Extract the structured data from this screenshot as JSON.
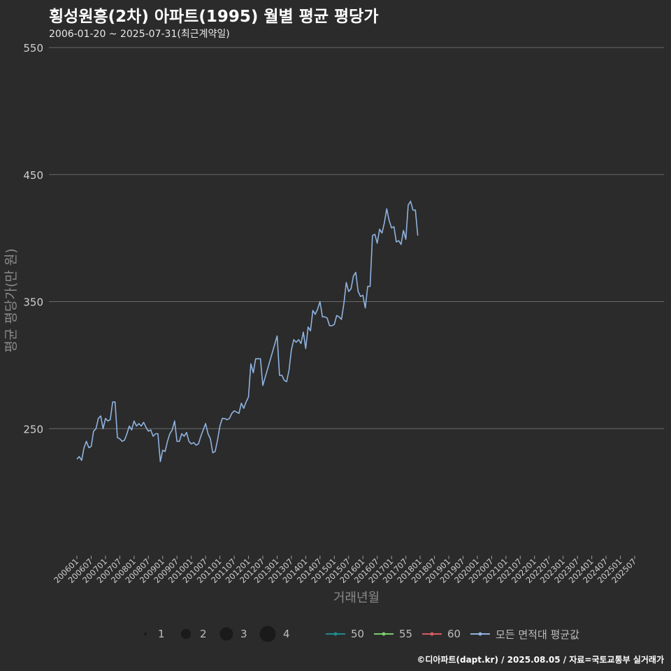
{
  "title": "횡성원흥(2차) 아파트(1995) 월별 평균 평당가",
  "subtitle": "2006-01-20 ~ 2025-07-31(최근계약일)",
  "caption": "©디아파트(dapt.kr) / 2025.08.05 / 자료=국토교통부 실거래가",
  "colors": {
    "background": "#2b2b2b",
    "grid": "#6a6a6a",
    "area_50": "#1f8c8c",
    "area_55": "#7ccd6e",
    "area_60": "#d95b63",
    "avg_line": "#8fb3e0"
  },
  "chart_data": {
    "type": "line",
    "title": "횡성원흥(2차) 아파트(1995) 월별 평균 평당가",
    "xlabel": "거래년월",
    "ylabel": "평균 평당가(만 원)",
    "ylim": [
      150,
      550
    ],
    "yticks": [
      250,
      350,
      450,
      550
    ],
    "xticks": [
      "200601",
      "200607",
      "200701",
      "200707",
      "200801",
      "200807",
      "200901",
      "200907",
      "201001",
      "201007",
      "201101",
      "201107",
      "201201",
      "201207",
      "201301",
      "201307",
      "201401",
      "201407",
      "201501",
      "201507",
      "201601",
      "201607",
      "201701",
      "201707",
      "201801",
      "201807",
      "201901",
      "201907",
      "202001",
      "202007",
      "202101",
      "202107",
      "202201",
      "202207",
      "202301",
      "202307",
      "202401",
      "202407",
      "202501",
      "202507"
    ],
    "grid": true,
    "legend_position": "bottom",
    "size_legend": {
      "values": [
        "1",
        "2",
        "3",
        "4"
      ]
    },
    "color_legend": [
      {
        "name": "50",
        "color": "#1f8c8c"
      },
      {
        "name": "55",
        "color": "#7ccd6e"
      },
      {
        "name": "60",
        "color": "#d95b63"
      },
      {
        "name": "모든 면적대 평균값",
        "color": "#8fb3e0"
      }
    ],
    "line_series": {
      "name": "모든 면적대 평균값",
      "points": [
        [
          "200601",
          226
        ],
        [
          "200602",
          228
        ],
        [
          "200603",
          225
        ],
        [
          "200604",
          235
        ],
        [
          "200605",
          240
        ],
        [
          "200606",
          235
        ],
        [
          "200607",
          236
        ],
        [
          "200608",
          248
        ],
        [
          "200609",
          250
        ],
        [
          "200610",
          258
        ],
        [
          "200611",
          260
        ],
        [
          "200612",
          250
        ],
        [
          "200701",
          258
        ],
        [
          "200702",
          256
        ],
        [
          "200703",
          257
        ],
        [
          "200704",
          271
        ],
        [
          "200705",
          271
        ],
        [
          "200706",
          243
        ],
        [
          "200707",
          242
        ],
        [
          "200708",
          240
        ],
        [
          "200709",
          241
        ],
        [
          "200710",
          246
        ],
        [
          "200711",
          252
        ],
        [
          "200712",
          249
        ],
        [
          "200801",
          256
        ],
        [
          "200802",
          252
        ],
        [
          "200803",
          254
        ],
        [
          "200804",
          252
        ],
        [
          "200805",
          255
        ],
        [
          "200806",
          251
        ],
        [
          "200807",
          248
        ],
        [
          "200808",
          249
        ],
        [
          "200809",
          244
        ],
        [
          "200810",
          246
        ],
        [
          "200811",
          246
        ],
        [
          "200812",
          224
        ],
        [
          "200901",
          233
        ],
        [
          "200902",
          232
        ],
        [
          "200903",
          240
        ],
        [
          "200904",
          246
        ],
        [
          "200905",
          249
        ],
        [
          "200906",
          256
        ],
        [
          "200907",
          240
        ],
        [
          "200908",
          240
        ],
        [
          "200909",
          246
        ],
        [
          "200910",
          244
        ],
        [
          "200911",
          247
        ],
        [
          "200912",
          240
        ],
        [
          "201001",
          238
        ],
        [
          "201002",
          239
        ],
        [
          "201003",
          237
        ],
        [
          "201004",
          238
        ],
        [
          "201005",
          244
        ],
        [
          "201006",
          249
        ],
        [
          "201007",
          254
        ],
        [
          "201008",
          246
        ],
        [
          "201009",
          242
        ],
        [
          "201010",
          231
        ],
        [
          "201011",
          232
        ],
        [
          "201012",
          241
        ],
        [
          "201101",
          252
        ],
        [
          "201102",
          258
        ],
        [
          "201103",
          258
        ],
        [
          "201104",
          257
        ],
        [
          "201105",
          258
        ],
        [
          "201106",
          262
        ],
        [
          "201107",
          264
        ],
        [
          "201108",
          263
        ],
        [
          "201109",
          262
        ],
        [
          "201110",
          270
        ],
        [
          "201111",
          266
        ],
        [
          "201112",
          271
        ],
        [
          "201201",
          275
        ],
        [
          "201202",
          301
        ],
        [
          "201203",
          294
        ],
        [
          "201204",
          305
        ],
        [
          "201205",
          305
        ],
        [
          "201206",
          305
        ],
        [
          "201207",
          284
        ],
        [
          "201301",
          323
        ],
        [
          "201302",
          292
        ],
        [
          "201303",
          292
        ],
        [
          "201304",
          288
        ],
        [
          "201305",
          287
        ],
        [
          "201306",
          296
        ],
        [
          "201307",
          312
        ],
        [
          "201308",
          320
        ],
        [
          "201309",
          318
        ],
        [
          "201310",
          320
        ],
        [
          "201311",
          317
        ],
        [
          "201312",
          326
        ],
        [
          "201401",
          313
        ],
        [
          "201402",
          330
        ],
        [
          "201403",
          327
        ],
        [
          "201404",
          343
        ],
        [
          "201405",
          340
        ],
        [
          "201406",
          344
        ],
        [
          "201407",
          350
        ],
        [
          "201408",
          338
        ],
        [
          "201409",
          338
        ],
        [
          "201410",
          337
        ],
        [
          "201411",
          331
        ],
        [
          "201412",
          331
        ],
        [
          "201501",
          332
        ],
        [
          "201502",
          339
        ],
        [
          "201503",
          338
        ],
        [
          "201504",
          336
        ],
        [
          "201505",
          348
        ],
        [
          "201506",
          365
        ],
        [
          "201507",
          358
        ],
        [
          "201508",
          360
        ],
        [
          "201509",
          370
        ],
        [
          "201510",
          373
        ],
        [
          "201511",
          358
        ],
        [
          "201512",
          354
        ],
        [
          "201601",
          355
        ],
        [
          "201602",
          345
        ],
        [
          "201603",
          362
        ],
        [
          "201604",
          362
        ],
        [
          "201605",
          402
        ],
        [
          "201606",
          403
        ],
        [
          "201607",
          396
        ],
        [
          "201608",
          407
        ],
        [
          "201609",
          404
        ],
        [
          "201610",
          412
        ],
        [
          "201611",
          423
        ],
        [
          "201612",
          414
        ],
        [
          "201701",
          408
        ],
        [
          "201702",
          409
        ],
        [
          "201703",
          397
        ],
        [
          "201704",
          398
        ],
        [
          "201705",
          395
        ],
        [
          "201706",
          406
        ],
        [
          "201707",
          399
        ],
        [
          "201708",
          426
        ],
        [
          "201709",
          429
        ],
        [
          "201710",
          422
        ],
        [
          "201711",
          422
        ],
        [
          "201712",
          402
        ],
        [
          "201801",
          ",null"
        ]
      ]
    },
    "bubbles": []
  }
}
